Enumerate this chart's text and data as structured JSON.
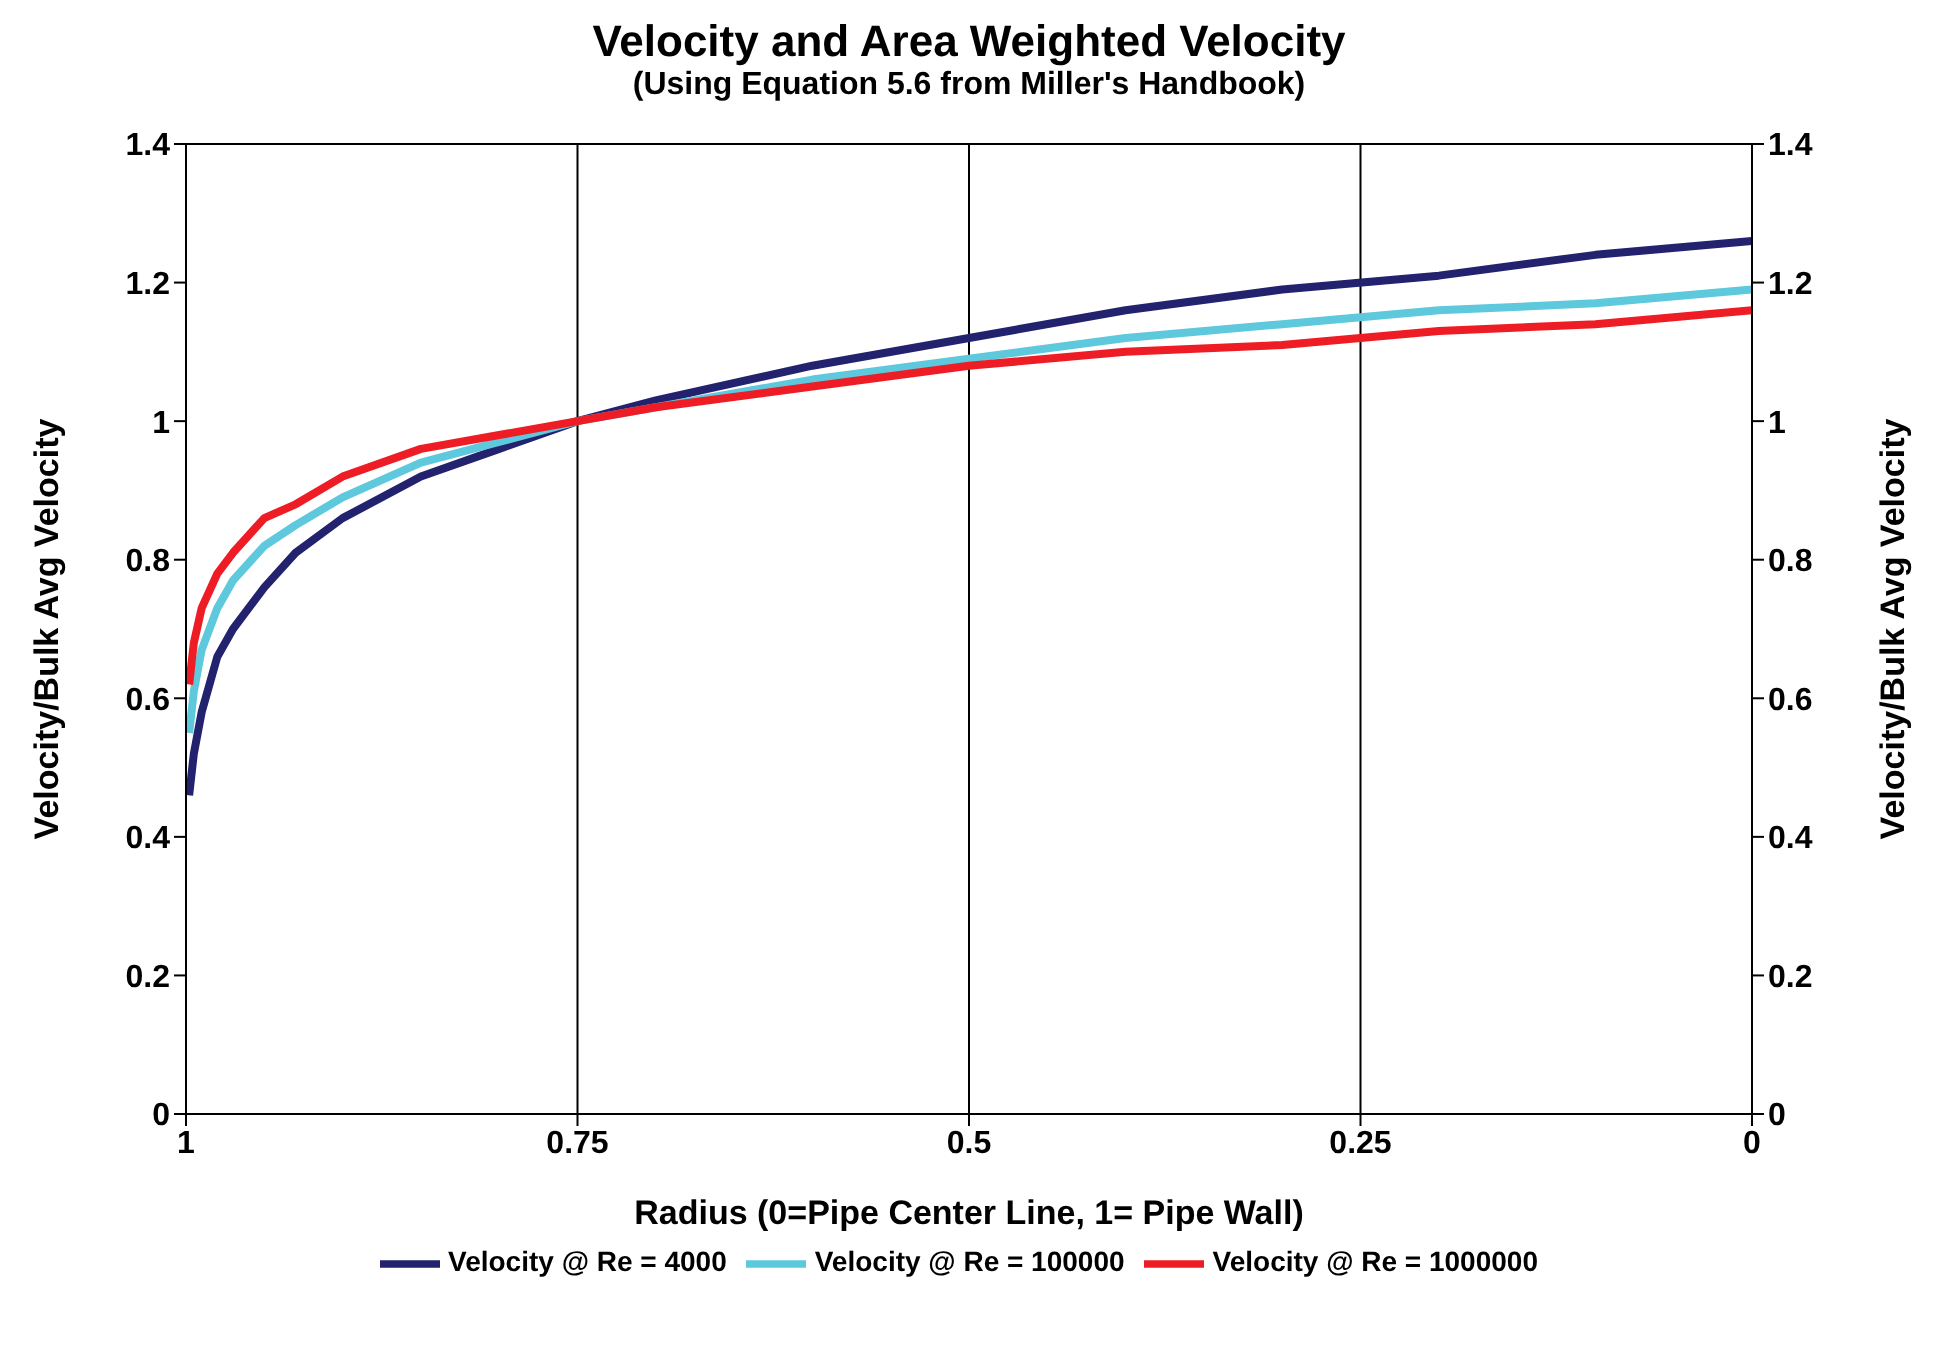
{
  "chart_data": {
    "type": "line",
    "title": "Velocity and Area Weighted Velocity",
    "subtitle": "(Using Equation 5.6 from Miller's Handbook)",
    "xlabel": "Radius (0=Pipe Center Line, 1= Pipe Wall)",
    "ylabel": "Velocity/Bulk Avg Velocity",
    "y2label": "Velocity/Bulk Avg Velocity",
    "x": [
      0.998,
      0.995,
      0.99,
      0.98,
      0.97,
      0.95,
      0.93,
      0.9,
      0.85,
      0.8,
      0.75,
      0.7,
      0.6,
      0.5,
      0.4,
      0.3,
      0.2,
      0.1,
      0
    ],
    "series": [
      {
        "name": "Velocity @ Re = 4000",
        "color": "#22226e",
        "values": [
          0.46,
          0.52,
          0.58,
          0.66,
          0.7,
          0.76,
          0.81,
          0.86,
          0.92,
          0.96,
          1.0,
          1.03,
          1.08,
          1.12,
          1.16,
          1.19,
          1.21,
          1.24,
          1.26
        ]
      },
      {
        "name": "Velocity @ Re = 100000",
        "color": "#5ec8dc",
        "values": [
          0.55,
          0.61,
          0.67,
          0.73,
          0.77,
          0.82,
          0.85,
          0.89,
          0.94,
          0.97,
          1.0,
          1.02,
          1.06,
          1.09,
          1.12,
          1.14,
          1.16,
          1.17,
          1.19
        ]
      },
      {
        "name": "Velocity @ Re = 1000000",
        "color": "#ee1c24",
        "values": [
          0.62,
          0.68,
          0.73,
          0.78,
          0.81,
          0.86,
          0.88,
          0.92,
          0.96,
          0.98,
          1.0,
          1.02,
          1.05,
          1.08,
          1.1,
          1.11,
          1.13,
          1.14,
          1.16
        ]
      }
    ],
    "xlim": [
      1,
      0
    ],
    "xticks": [
      1,
      0.75,
      0.5,
      0.25,
      0
    ],
    "ylim": [
      0,
      1.4
    ],
    "yticks": [
      0,
      0.2,
      0.4,
      0.6,
      0.8,
      1,
      1.2,
      1.4
    ],
    "y2lim": [
      0,
      1.4
    ],
    "y2ticks": [
      0,
      0.2,
      0.4,
      0.6,
      0.8,
      1,
      1.2,
      1.4
    ],
    "grid": true,
    "legend": "bottom",
    "line_style": "solid"
  }
}
